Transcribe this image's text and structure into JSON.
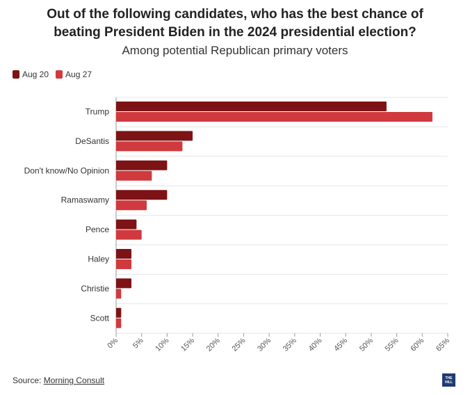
{
  "header": {
    "title_line1": "Out of the following candidates, who has the best chance of",
    "title_line2": "beating President Biden in the 2024 presidential election?",
    "subtitle": "Among potential Republican primary voters"
  },
  "footer": {
    "source_prefix": "Source: ",
    "source_link": "Morning Consult",
    "logo_text": "THE HILL"
  },
  "colors": {
    "aug20": "#7d1315",
    "aug27": "#d03a3e",
    "grid": "#e6e6e6",
    "axis": "#999999"
  },
  "chart_data": {
    "type": "bar",
    "orientation": "horizontal",
    "categories": [
      "Trump",
      "DeSantis",
      "Don't know/No Opinion",
      "Ramaswamy",
      "Pence",
      "Haley",
      "Christie",
      "Scott"
    ],
    "series": [
      {
        "name": "Aug 20",
        "values": [
          53,
          15,
          10,
          10,
          4,
          3,
          3,
          1
        ]
      },
      {
        "name": "Aug 27",
        "values": [
          62,
          13,
          7,
          6,
          5,
          3,
          1,
          1
        ]
      }
    ],
    "xlim": [
      0,
      65
    ],
    "ticks": [
      "0%",
      "5%",
      "10%",
      "15%",
      "20%",
      "25%",
      "30%",
      "35%",
      "40%",
      "45%",
      "50%",
      "55%",
      "60%",
      "65%"
    ],
    "tick_values": [
      0,
      5,
      10,
      15,
      20,
      25,
      30,
      35,
      40,
      45,
      50,
      55,
      60,
      65
    ],
    "grid": true,
    "legend": "top-left"
  }
}
